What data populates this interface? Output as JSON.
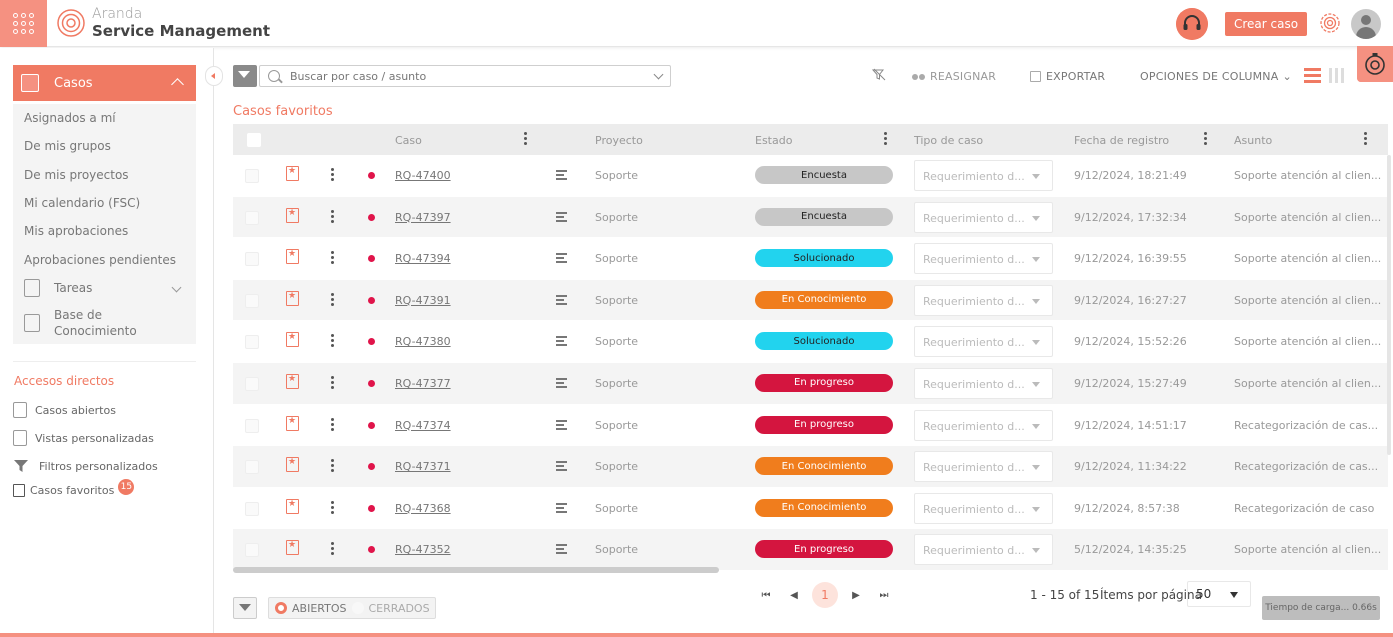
{
  "header": {
    "brand_top": "Aranda",
    "brand_bottom": "Service Management",
    "create_label": "Crear caso"
  },
  "colors": {
    "accent": "#f07a63",
    "encuesta": "#c7c7c7",
    "solucionado": "#22d3ee",
    "en_conocimiento": "#f07d1d",
    "en_progreso": "#d4153f"
  },
  "sidebar": {
    "casos_label": "Casos",
    "items": [
      "Asignados a mí",
      "De mis grupos",
      "De mis proyectos",
      "Mi calendario (FSC)",
      "Mis aprobaciones",
      "Aprobaciones pendientes"
    ],
    "tareas_label": "Tareas",
    "base_label_1": "Base de",
    "base_label_2": "Conocimiento",
    "accesos_title": "Accesos directos",
    "accesos": {
      "abiertos": "Casos abiertos",
      "vistas": "Vistas personalizadas",
      "filtros": "Filtros personalizados",
      "favoritos": "Casos favoritos",
      "favoritos_count": "15"
    }
  },
  "toolbar": {
    "search_placeholder": "Buscar por caso / asunto",
    "reasignar": "REASIGNAR",
    "exportar": "EXPORTAR",
    "opciones": "OPCIONES DE COLUMNA"
  },
  "section_title": "Casos favoritos",
  "table": {
    "columns": {
      "caso": "Caso",
      "proyecto": "Proyecto",
      "estado": "Estado",
      "tipo": "Tipo de caso",
      "fecha": "Fecha de registro",
      "asunto": "Asunto"
    },
    "rows": [
      {
        "caso": "RQ-47400",
        "proyecto": "Soporte",
        "estado": "Encuesta",
        "estado_key": "encuesta",
        "tipo": "Requerimiento d...",
        "fecha": "9/12/2024, 18:21:49",
        "asunto": "Soporte atención al clien..."
      },
      {
        "caso": "RQ-47397",
        "proyecto": "Soporte",
        "estado": "Encuesta",
        "estado_key": "encuesta",
        "tipo": "Requerimiento d...",
        "fecha": "9/12/2024, 17:32:34",
        "asunto": "Soporte atención al clien..."
      },
      {
        "caso": "RQ-47394",
        "proyecto": "Soporte",
        "estado": "Solucionado",
        "estado_key": "solucionado",
        "tipo": "Requerimiento d...",
        "fecha": "9/12/2024, 16:39:55",
        "asunto": "Soporte atención al clien..."
      },
      {
        "caso": "RQ-47391",
        "proyecto": "Soporte",
        "estado": "En Conocimiento",
        "estado_key": "en_conocimiento",
        "tipo": "Requerimiento d...",
        "fecha": "9/12/2024, 16:27:27",
        "asunto": "Soporte atención al clien..."
      },
      {
        "caso": "RQ-47380",
        "proyecto": "Soporte",
        "estado": "Solucionado",
        "estado_key": "solucionado",
        "tipo": "Requerimiento d...",
        "fecha": "9/12/2024, 15:52:26",
        "asunto": "Soporte atención al clien..."
      },
      {
        "caso": "RQ-47377",
        "proyecto": "Soporte",
        "estado": "En progreso",
        "estado_key": "en_progreso",
        "tipo": "Requerimiento d...",
        "fecha": "9/12/2024, 15:27:49",
        "asunto": "Soporte atención al clien..."
      },
      {
        "caso": "RQ-47374",
        "proyecto": "Soporte",
        "estado": "En progreso",
        "estado_key": "en_progreso",
        "tipo": "Requerimiento d...",
        "fecha": "9/12/2024, 14:51:17",
        "asunto": "Recategorización de cas..."
      },
      {
        "caso": "RQ-47371",
        "proyecto": "Soporte",
        "estado": "En Conocimiento",
        "estado_key": "en_conocimiento",
        "tipo": "Requerimiento d...",
        "fecha": "9/12/2024, 11:34:22",
        "asunto": "Recategorización de cas..."
      },
      {
        "caso": "RQ-47368",
        "proyecto": "Soporte",
        "estado": "En Conocimiento",
        "estado_key": "en_conocimiento",
        "tipo": "Requerimiento d...",
        "fecha": "9/12/2024, 8:57:38",
        "asunto": "Recategorización de caso"
      },
      {
        "caso": "RQ-47352",
        "proyecto": "Soporte",
        "estado": "En progreso",
        "estado_key": "en_progreso",
        "tipo": "Requerimiento d...",
        "fecha": "5/12/2024, 14:35:25",
        "asunto": "Soporte atención al clien..."
      }
    ]
  },
  "footer": {
    "abiertos": "ABIERTOS",
    "cerrados": "CERRADOS",
    "page": "1",
    "range": "1 - 15 of 15",
    "items_label": "Ítems por página",
    "page_size": "50",
    "load_time": "Tiempo de carga... 0.66s"
  }
}
